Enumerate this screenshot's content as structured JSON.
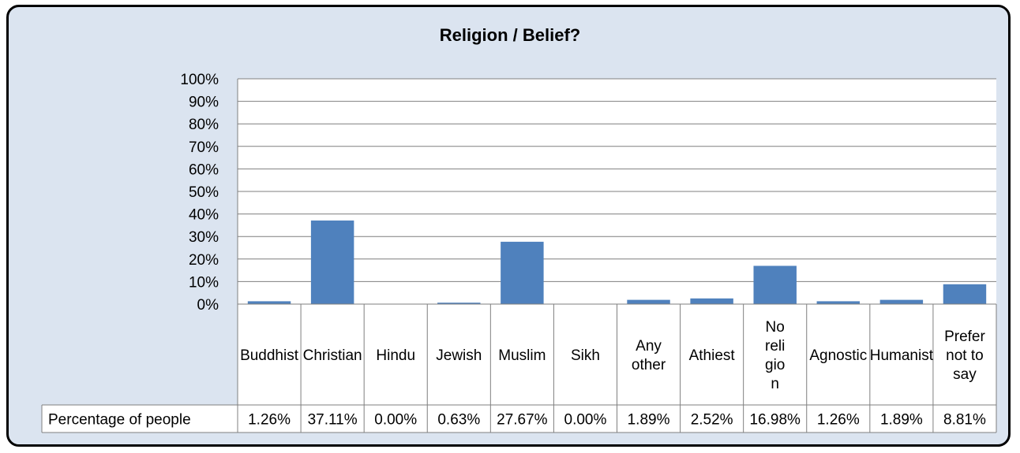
{
  "chart_data": {
    "type": "bar",
    "title": "Religion / Belief?",
    "categories": [
      "Buddhist",
      "Christian",
      "Hindu",
      "Jewish",
      "Muslim",
      "Sikh",
      "Any other",
      "Athiest",
      "No religion",
      "Agnostic",
      "Humanist",
      "Prefer not to say"
    ],
    "category_display": [
      [
        "Buddhist"
      ],
      [
        "Christian"
      ],
      [
        "Hindu"
      ],
      [
        "Jewish"
      ],
      [
        "Muslim"
      ],
      [
        "Sikh"
      ],
      [
        "Any",
        "other"
      ],
      [
        "Athiest"
      ],
      [
        "No",
        "reli",
        "gio",
        "n"
      ],
      [
        "Agnostic"
      ],
      [
        "Humanist"
      ],
      [
        "Prefer",
        "not to",
        "say"
      ]
    ],
    "series": [
      {
        "name": "Percentage of people",
        "values": [
          1.26,
          37.11,
          0.0,
          0.63,
          27.67,
          0.0,
          1.89,
          2.52,
          16.98,
          1.26,
          1.89,
          8.81
        ],
        "labels": [
          "1.26%",
          "37.11%",
          "0.00%",
          "0.63%",
          "27.67%",
          "0.00%",
          "1.89%",
          "2.52%",
          "16.98%",
          "1.26%",
          "1.89%",
          "8.81%"
        ]
      }
    ],
    "ylim": [
      0,
      100
    ],
    "yticks": [
      "0%",
      "10%",
      "20%",
      "30%",
      "40%",
      "50%",
      "60%",
      "70%",
      "80%",
      "90%",
      "100%"
    ],
    "grid": true,
    "legend": "data-table",
    "bar_color": "#4f81bd"
  }
}
